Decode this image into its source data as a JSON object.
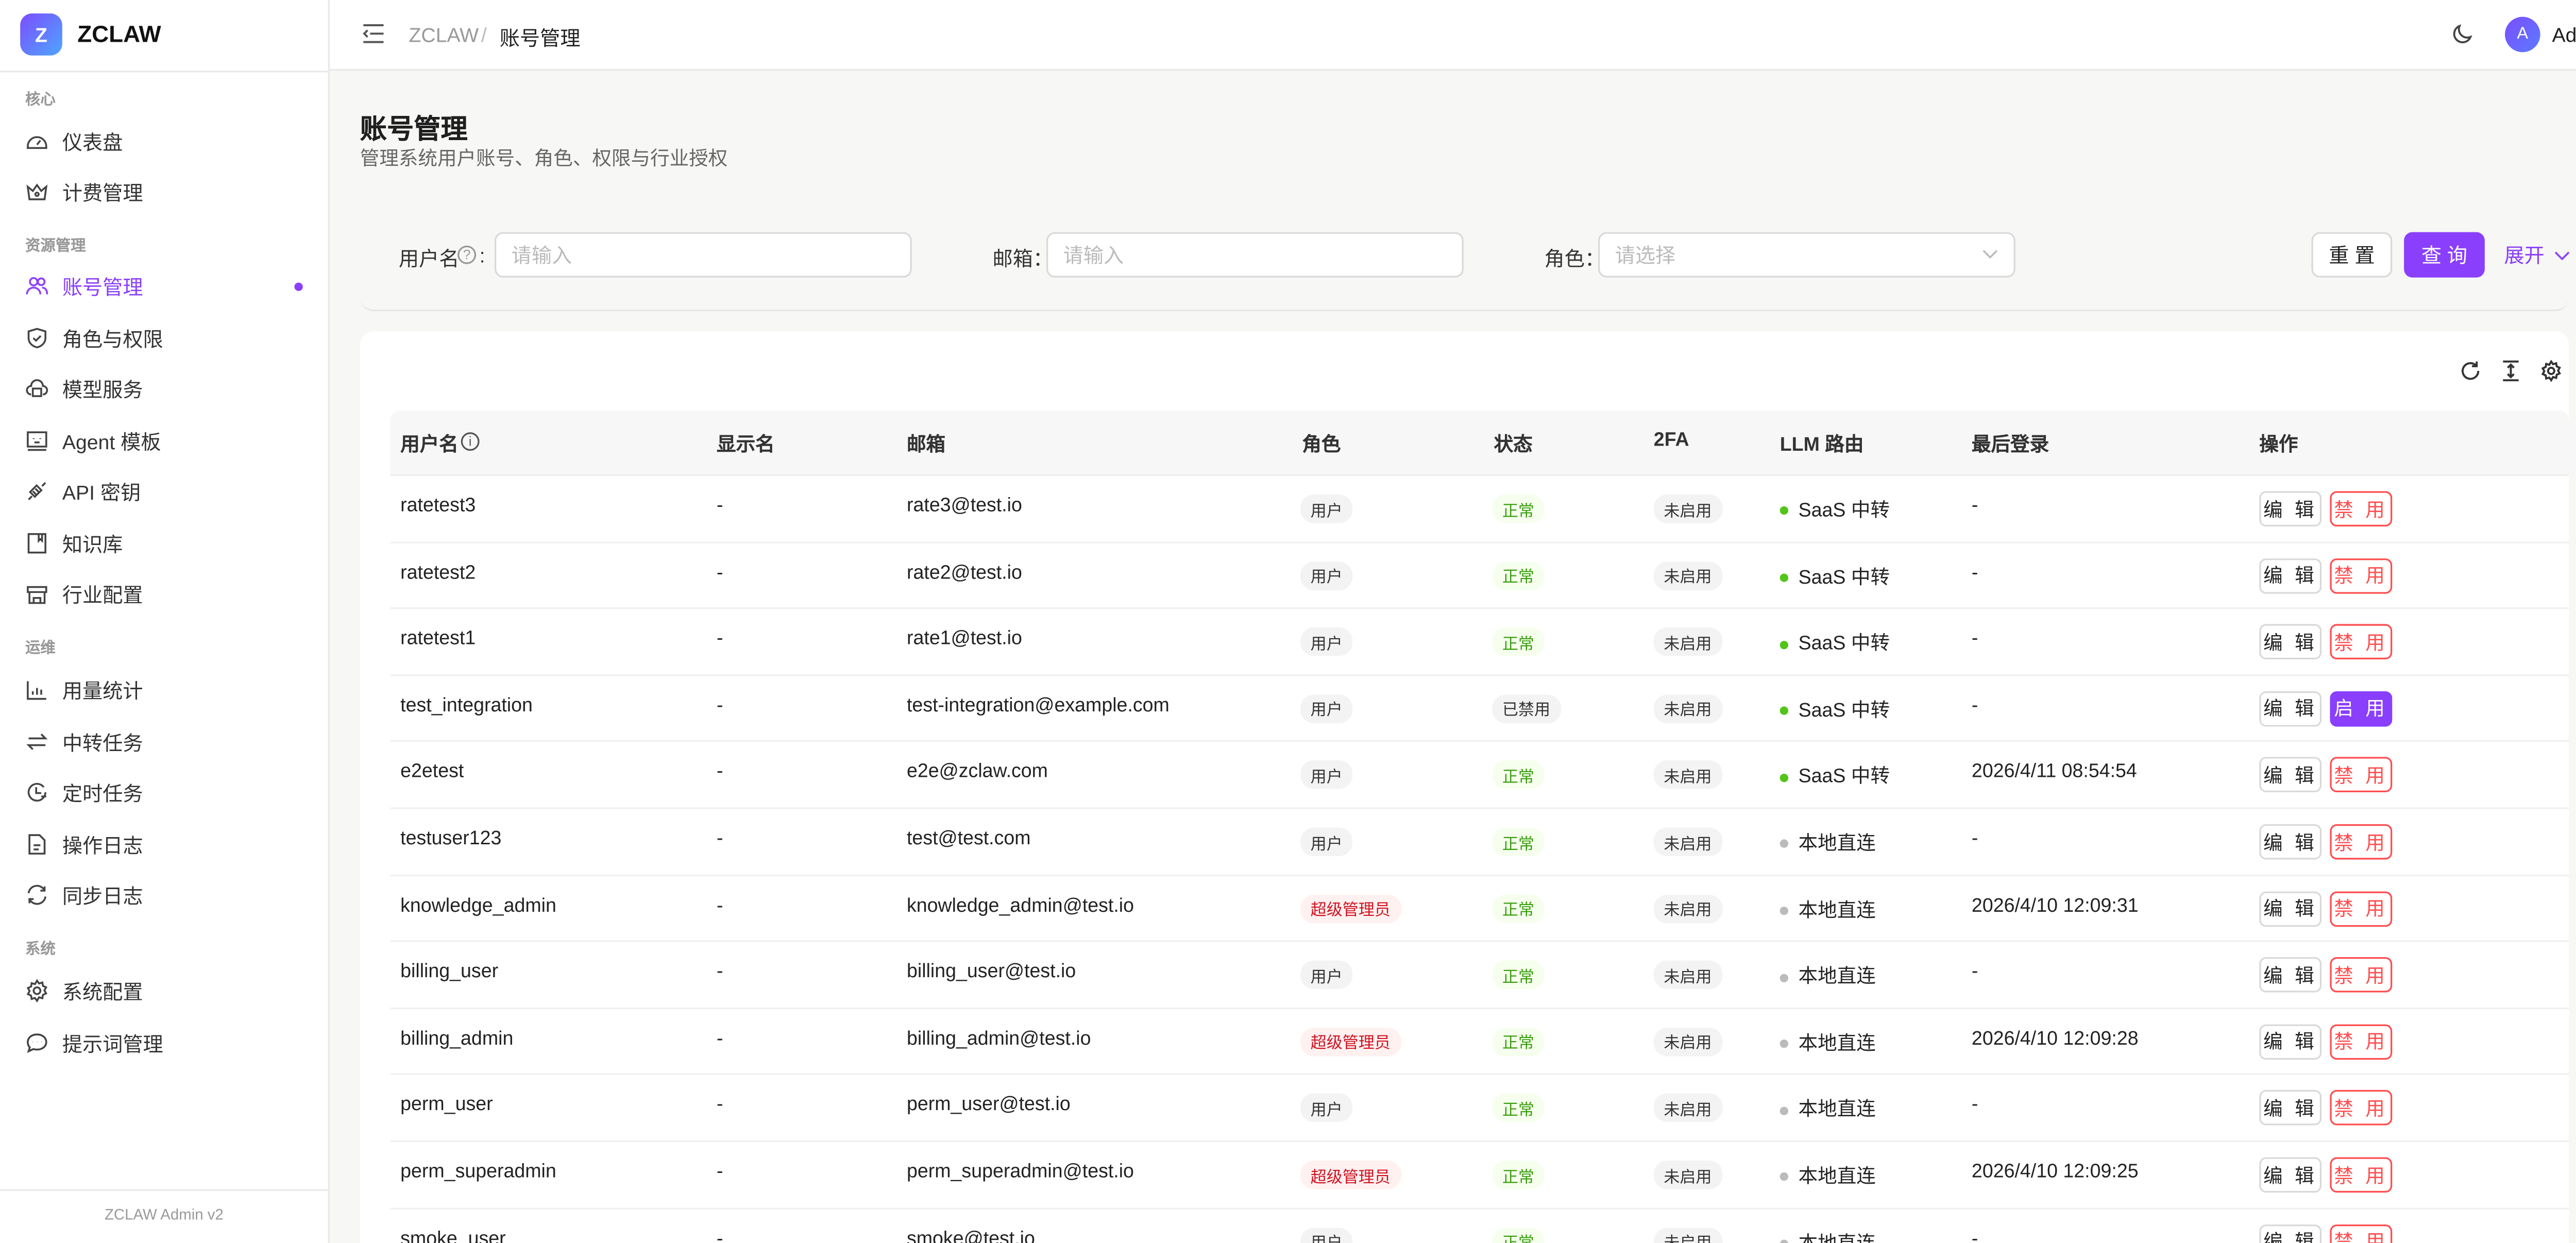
{
  "brand": {
    "logo_letter": "Z",
    "name": "ZCLAW",
    "footer": "ZCLAW Admin v2"
  },
  "colors": {
    "accent": "#8a3ffc",
    "danger": "#ff4d4f",
    "success": "#52c41a"
  },
  "sidebar": {
    "sections": [
      {
        "label": "核心",
        "items": [
          {
            "label": "仪表盘",
            "icon": "dashboard-icon"
          },
          {
            "label": "计费管理",
            "icon": "crown-icon"
          }
        ]
      },
      {
        "label": "资源管理",
        "items": [
          {
            "label": "账号管理",
            "icon": "users-icon",
            "active": true
          },
          {
            "label": "角色与权限",
            "icon": "shield-icon"
          },
          {
            "label": "模型服务",
            "icon": "cloud-icon"
          },
          {
            "label": "Agent 模板",
            "icon": "robot-icon"
          },
          {
            "label": "API 密钥",
            "icon": "plug-icon"
          },
          {
            "label": "知识库",
            "icon": "book-icon"
          },
          {
            "label": "行业配置",
            "icon": "store-icon"
          }
        ]
      },
      {
        "label": "运维",
        "items": [
          {
            "label": "用量统计",
            "icon": "bar-chart-icon"
          },
          {
            "label": "中转任务",
            "icon": "swap-icon"
          },
          {
            "label": "定时任务",
            "icon": "clock-icon"
          },
          {
            "label": "操作日志",
            "icon": "file-icon"
          },
          {
            "label": "同步日志",
            "icon": "sync-icon"
          }
        ]
      },
      {
        "label": "系统",
        "items": [
          {
            "label": "系统配置",
            "icon": "gear-icon"
          },
          {
            "label": "提示词管理",
            "icon": "message-icon"
          }
        ]
      }
    ]
  },
  "header": {
    "breadcrumb": [
      "ZCLAW",
      "账号管理"
    ],
    "separator": "/",
    "user": {
      "avatar": "A",
      "name": "Admin"
    }
  },
  "page": {
    "title": "账号管理",
    "subtitle": "管理系统用户账号、角色、权限与行业授权"
  },
  "filters": {
    "username": {
      "label": "用户名",
      "colon": ":",
      "placeholder": "请输入"
    },
    "email": {
      "label": "邮箱：",
      "placeholder": "请输入"
    },
    "role": {
      "label": "角色：",
      "placeholder": "请选择"
    },
    "reset": "重 置",
    "query": "查 询",
    "expand": "展开"
  },
  "table": {
    "columns": [
      "用户名",
      "显示名",
      "邮箱",
      "角色",
      "状态",
      "2FA",
      "LLM 路由",
      "最后登录",
      "操作"
    ],
    "rows": [
      {
        "username": "ratetest3",
        "display": "-",
        "email": "rate3@test.io",
        "role": "用户",
        "status": "正常",
        "twofa": "未启用",
        "route": "SaaS 中转",
        "last": "-",
        "toggle": "禁 用"
      },
      {
        "username": "ratetest2",
        "display": "-",
        "email": "rate2@test.io",
        "role": "用户",
        "status": "正常",
        "twofa": "未启用",
        "route": "SaaS 中转",
        "last": "-",
        "toggle": "禁 用"
      },
      {
        "username": "ratetest1",
        "display": "-",
        "email": "rate1@test.io",
        "role": "用户",
        "status": "正常",
        "twofa": "未启用",
        "route": "SaaS 中转",
        "last": "-",
        "toggle": "禁 用"
      },
      {
        "username": "test_integration",
        "display": "-",
        "email": "test-integration@example.com",
        "role": "用户",
        "status": "已禁用",
        "twofa": "未启用",
        "route": "SaaS 中转",
        "last": "-",
        "toggle": "启 用"
      },
      {
        "username": "e2etest",
        "display": "-",
        "email": "e2e@zclaw.com",
        "role": "用户",
        "status": "正常",
        "twofa": "未启用",
        "route": "SaaS 中转",
        "last": "2026/4/11 08:54:54",
        "toggle": "禁 用"
      },
      {
        "username": "testuser123",
        "display": "-",
        "email": "test@test.com",
        "role": "用户",
        "status": "正常",
        "twofa": "未启用",
        "route": "本地直连",
        "last": "-",
        "toggle": "禁 用"
      },
      {
        "username": "knowledge_admin",
        "display": "-",
        "email": "knowledge_admin@test.io",
        "role": "超级管理员",
        "status": "正常",
        "twofa": "未启用",
        "route": "本地直连",
        "last": "2026/4/10 12:09:31",
        "toggle": "禁 用"
      },
      {
        "username": "billing_user",
        "display": "-",
        "email": "billing_user@test.io",
        "role": "用户",
        "status": "正常",
        "twofa": "未启用",
        "route": "本地直连",
        "last": "-",
        "toggle": "禁 用"
      },
      {
        "username": "billing_admin",
        "display": "-",
        "email": "billing_admin@test.io",
        "role": "超级管理员",
        "status": "正常",
        "twofa": "未启用",
        "route": "本地直连",
        "last": "2026/4/10 12:09:28",
        "toggle": "禁 用"
      },
      {
        "username": "perm_user",
        "display": "-",
        "email": "perm_user@test.io",
        "role": "用户",
        "status": "正常",
        "twofa": "未启用",
        "route": "本地直连",
        "last": "-",
        "toggle": "禁 用"
      },
      {
        "username": "perm_superadmin",
        "display": "-",
        "email": "perm_superadmin@test.io",
        "role": "超级管理员",
        "status": "正常",
        "twofa": "未启用",
        "route": "本地直连",
        "last": "2026/4/10 12:09:25",
        "toggle": "禁 用"
      },
      {
        "username": "smoke_user",
        "display": "-",
        "email": "smoke@test.io",
        "role": "用户",
        "status": "正常",
        "twofa": "未启用",
        "route": "本地直连",
        "last": "-",
        "toggle": "禁 用"
      }
    ],
    "edit_label": "编 辑"
  }
}
